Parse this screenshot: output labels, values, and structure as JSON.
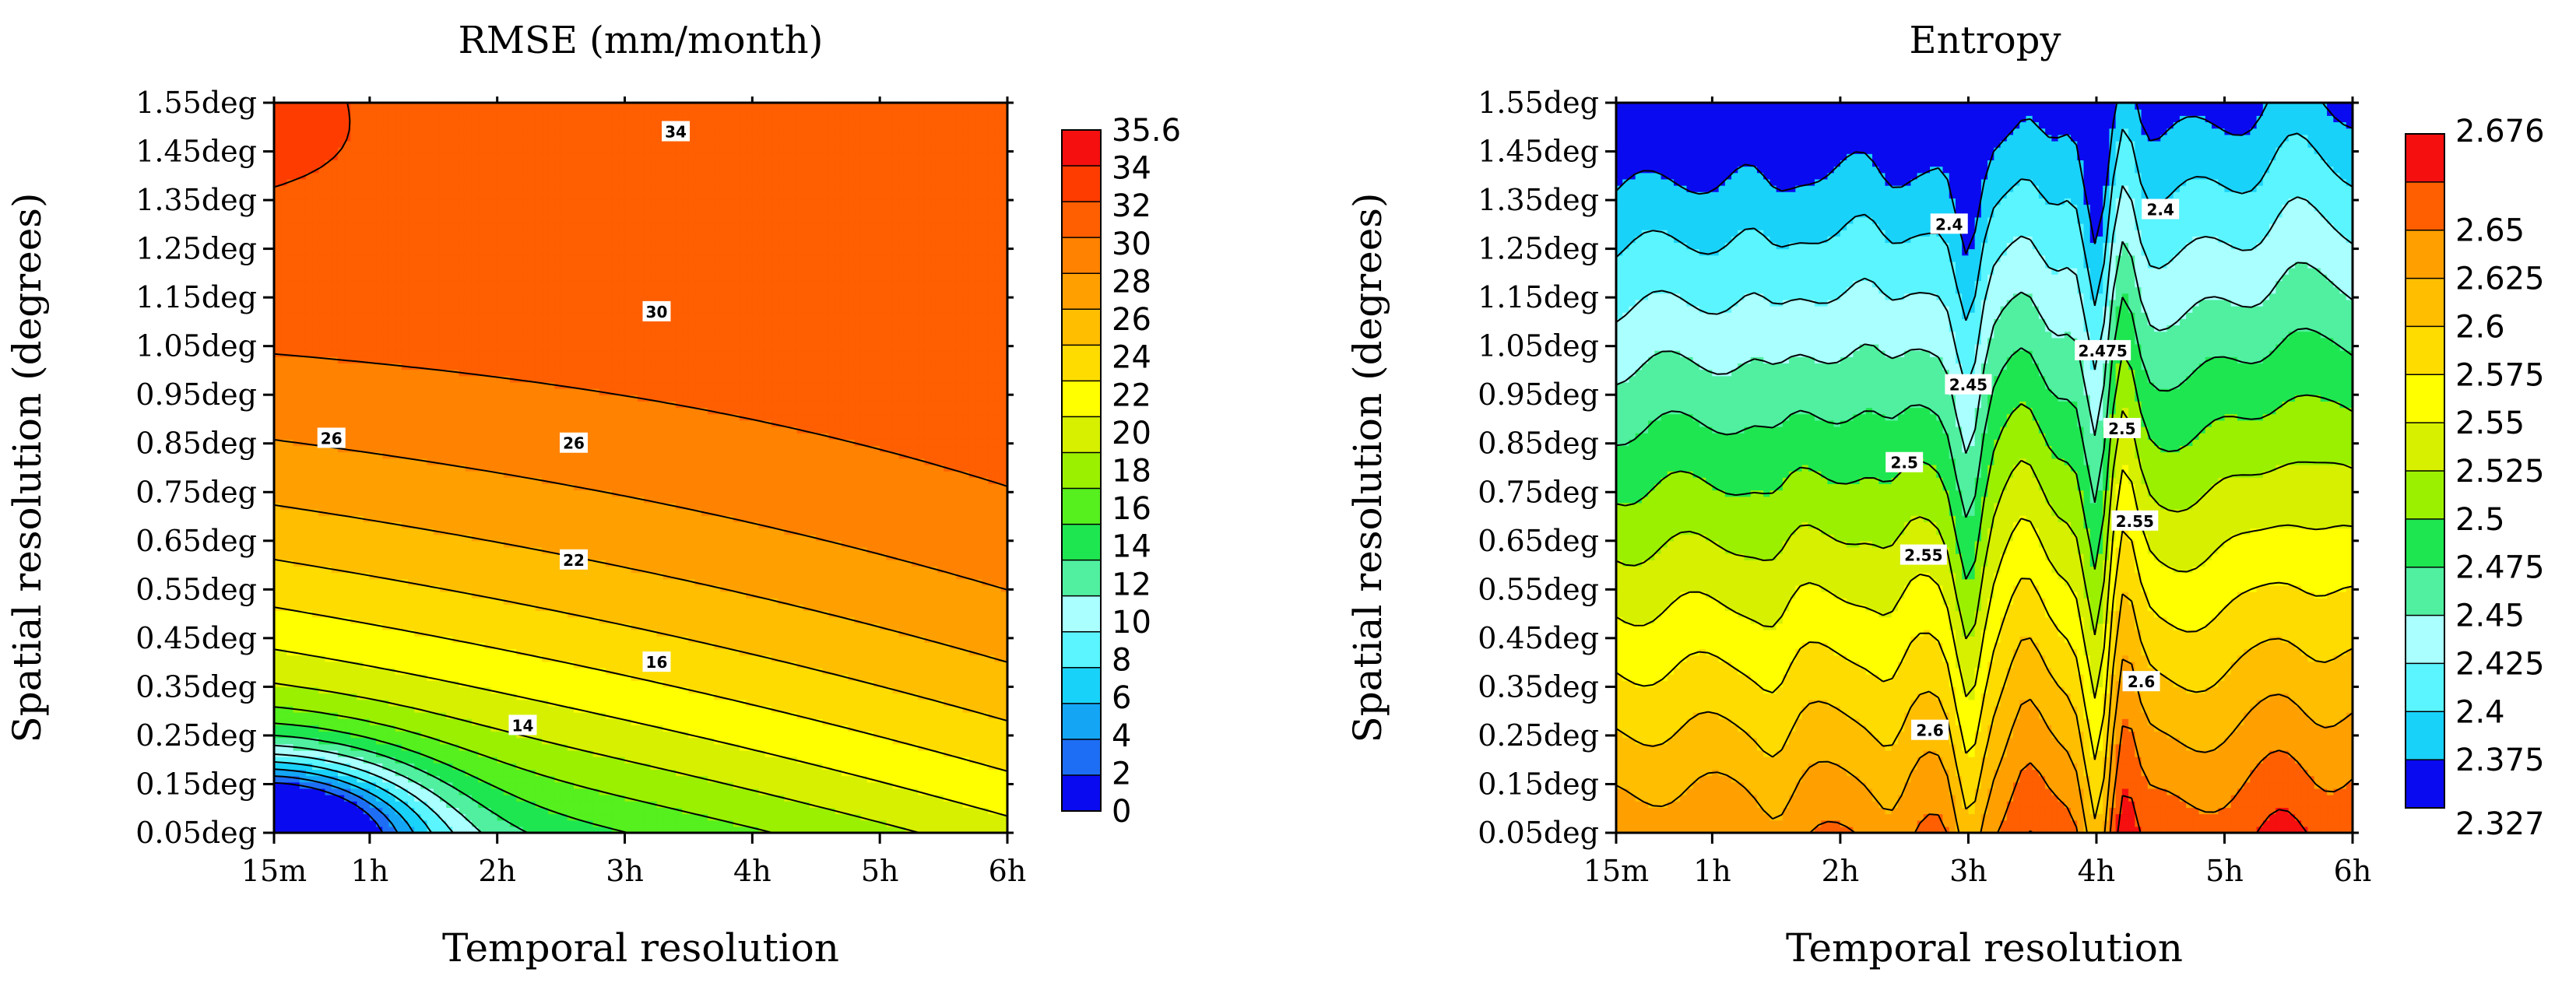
{
  "chart_data": [
    {
      "type": "contour",
      "title": "RMSE (mm/month)",
      "xlabel": "Temporal resolution",
      "ylabel": "Spatial resolution (degrees)",
      "x_ticks": [
        "15m",
        "1h",
        "2h",
        "3h",
        "4h",
        "5h",
        "6h"
      ],
      "x_tick_hours": [
        0.25,
        1,
        2,
        3,
        4,
        5,
        6
      ],
      "y_ticks": [
        "0.05deg",
        "0.15deg",
        "0.25deg",
        "0.35deg",
        "0.45deg",
        "0.55deg",
        "0.65deg",
        "0.75deg",
        "0.85deg",
        "0.95deg",
        "1.05deg",
        "1.15deg",
        "1.25deg",
        "1.35deg",
        "1.45deg",
        "1.55deg"
      ],
      "y_tick_deg": [
        0.05,
        0.15,
        0.25,
        0.35,
        0.45,
        0.55,
        0.65,
        0.75,
        0.85,
        0.95,
        1.05,
        1.15,
        1.25,
        1.35,
        1.45,
        1.55
      ],
      "xlim": [
        0.25,
        6
      ],
      "ylim": [
        0.05,
        1.55
      ],
      "colorbar_labels": [
        "0",
        "2",
        "4",
        "6",
        "8",
        "10",
        "12",
        "14",
        "16",
        "18",
        "20",
        "22",
        "24",
        "26",
        "28",
        "30",
        "32",
        "34",
        "35.6"
      ],
      "colorbar_colors": [
        "#0a0af0",
        "#1e6ef5",
        "#14a6f5",
        "#19d2fa",
        "#5af5ff",
        "#aaffff",
        "#50f0a0",
        "#1ee650",
        "#55f01e",
        "#9bf000",
        "#d7f000",
        "#ffff00",
        "#ffdc00",
        "#ffbe00",
        "#ffa000",
        "#ff8200",
        "#ff5f00",
        "#ff3c00",
        "#f50f0f"
      ],
      "contour_labels": [
        {
          "text": "34",
          "x": 3.4,
          "y": 1.49
        },
        {
          "text": "30",
          "x": 3.25,
          "y": 1.12
        },
        {
          "text": "26",
          "x": 0.7,
          "y": 0.86
        },
        {
          "text": "26",
          "x": 2.6,
          "y": 0.85
        },
        {
          "text": "22",
          "x": 2.6,
          "y": 0.61
        },
        {
          "text": "16",
          "x": 3.25,
          "y": 0.4
        },
        {
          "text": "14",
          "x": 2.2,
          "y": 0.27
        }
      ],
      "grid": false
    },
    {
      "type": "contour",
      "title": "Entropy",
      "xlabel": "Temporal resolution",
      "ylabel": "Spatial resolution (degrees)",
      "x_ticks": [
        "15m",
        "1h",
        "2h",
        "3h",
        "4h",
        "5h",
        "6h"
      ],
      "x_tick_hours": [
        0.25,
        1,
        2,
        3,
        4,
        5,
        6
      ],
      "y_ticks": [
        "0.05deg",
        "0.15deg",
        "0.25deg",
        "0.35deg",
        "0.45deg",
        "0.55deg",
        "0.65deg",
        "0.75deg",
        "0.85deg",
        "0.95deg",
        "1.05deg",
        "1.15deg",
        "1.25deg",
        "1.35deg",
        "1.45deg",
        "1.55deg"
      ],
      "y_tick_deg": [
        0.05,
        0.15,
        0.25,
        0.35,
        0.45,
        0.55,
        0.65,
        0.75,
        0.85,
        0.95,
        1.05,
        1.15,
        1.25,
        1.35,
        1.45,
        1.55
      ],
      "xlim": [
        0.25,
        6
      ],
      "ylim": [
        0.05,
        1.55
      ],
      "colorbar_labels": [
        "2.327",
        "2.375",
        "2.4",
        "2.425",
        "2.45",
        "2.475",
        "2.5",
        "2.525",
        "2.55",
        "2.575",
        "2.6",
        "2.625",
        "2.65",
        "2.676"
      ],
      "colorbar_colors": [
        "#0a0af0",
        "#19d2fa",
        "#5af5ff",
        "#aaffff",
        "#50f0a0",
        "#1ee650",
        "#9bf000",
        "#d7f000",
        "#ffff00",
        "#ffdc00",
        "#ffbe00",
        "#ffa000",
        "#ff5f00",
        "#f50f0f"
      ],
      "contour_labels": [
        {
          "text": "2.4",
          "x": 2.85,
          "y": 1.3
        },
        {
          "text": "2.4",
          "x": 4.5,
          "y": 1.33
        },
        {
          "text": "2.45",
          "x": 3.0,
          "y": 0.97
        },
        {
          "text": "2.475",
          "x": 4.05,
          "y": 1.04
        },
        {
          "text": "2.5",
          "x": 4.2,
          "y": 0.88
        },
        {
          "text": "2.5",
          "x": 2.5,
          "y": 0.81
        },
        {
          "text": "2.55",
          "x": 4.3,
          "y": 0.69
        },
        {
          "text": "2.55",
          "x": 2.65,
          "y": 0.62
        },
        {
          "text": "2.6",
          "x": 4.35,
          "y": 0.36
        },
        {
          "text": "2.6",
          "x": 2.7,
          "y": 0.26
        }
      ],
      "grid": false
    }
  ]
}
